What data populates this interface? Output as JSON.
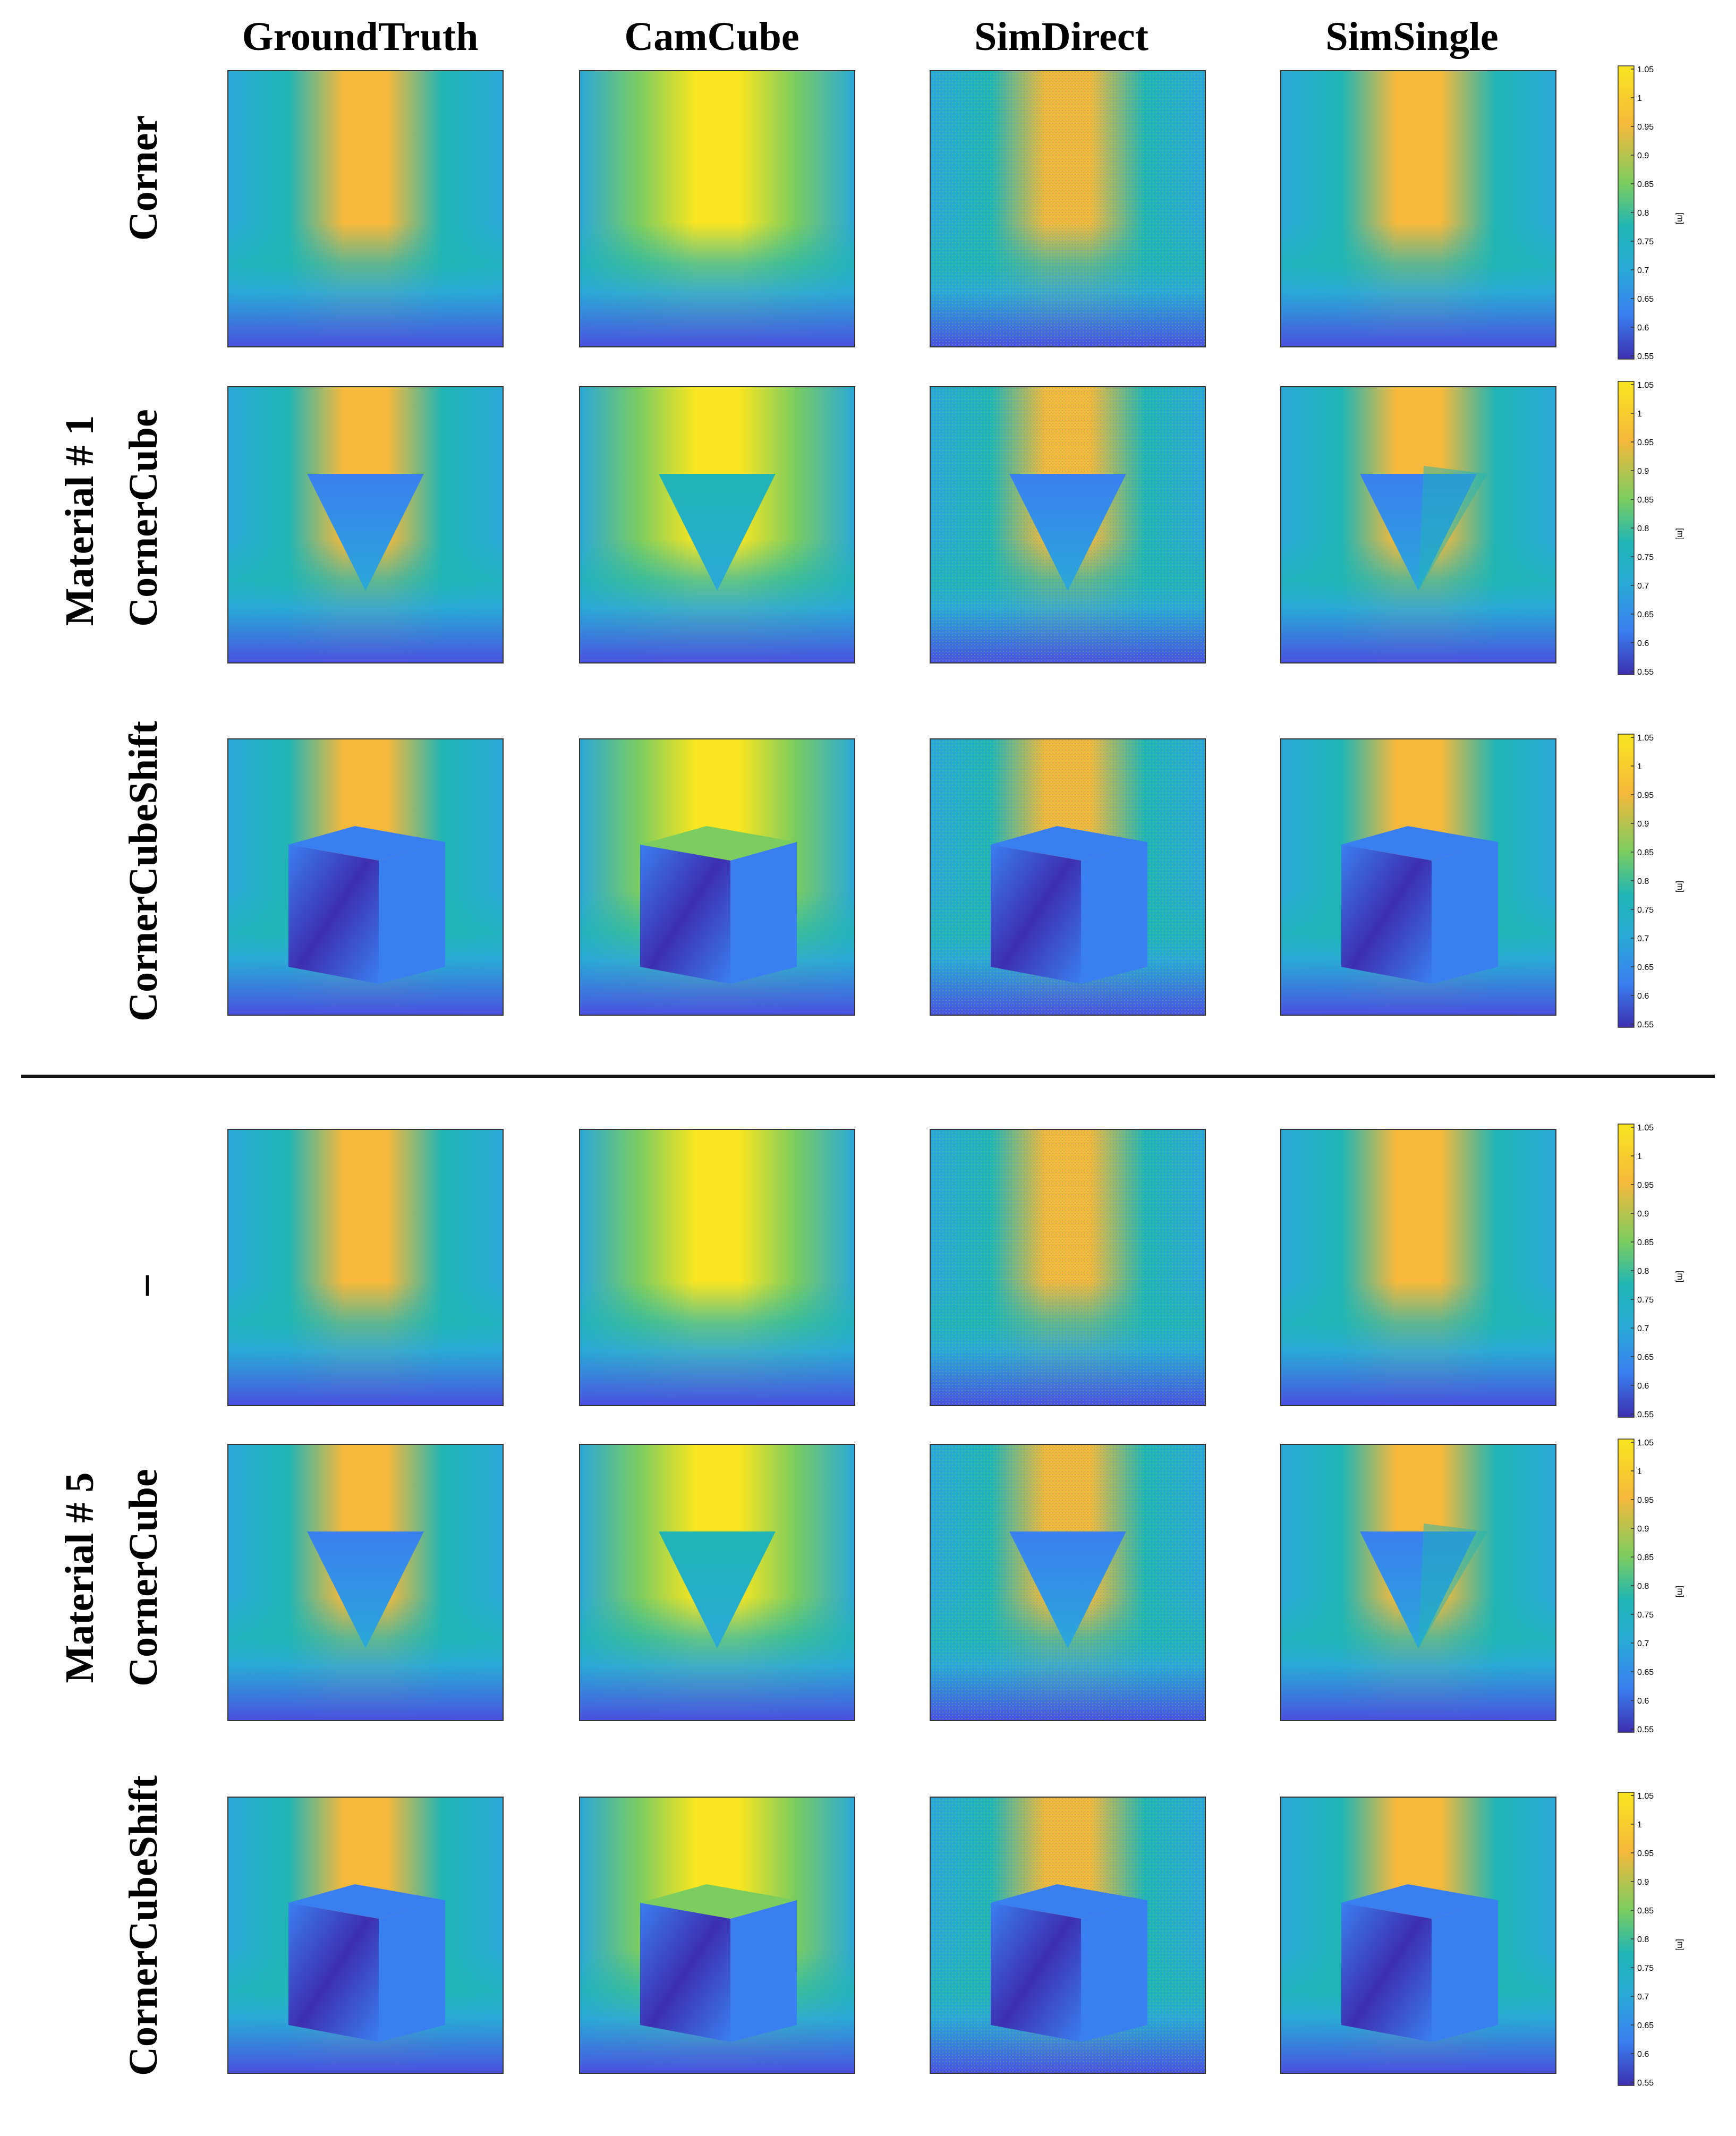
{
  "columns": [
    "GroundTruth",
    "CamCube",
    "SimDirect",
    "SimSingle"
  ],
  "groups": [
    {
      "label": "Material # 1",
      "rows": [
        "Corner",
        "CornerCube",
        "CornerCubeShift"
      ]
    },
    {
      "label": "Material # 5",
      "rows": [
        "–",
        "CornerCube",
        "CornerCubeShift"
      ]
    }
  ],
  "colorbar": {
    "ticks": [
      "1.05",
      "1",
      "0.95",
      "0.9",
      "0.85",
      "0.8",
      "0.75",
      "0.7",
      "0.65",
      "0.6",
      "0.55"
    ],
    "unit": "[m]",
    "range": [
      0.55,
      1.05
    ]
  },
  "colors": {
    "yellow": "#f9e521",
    "orange": "#f6b93b",
    "green": "#7ccd5f",
    "teal": "#1fb5b5",
    "cyan": "#2aa8d8",
    "blue": "#3a7ff0",
    "deep_blue": "#4a4fe0",
    "navy": "#3d2fb0"
  }
}
